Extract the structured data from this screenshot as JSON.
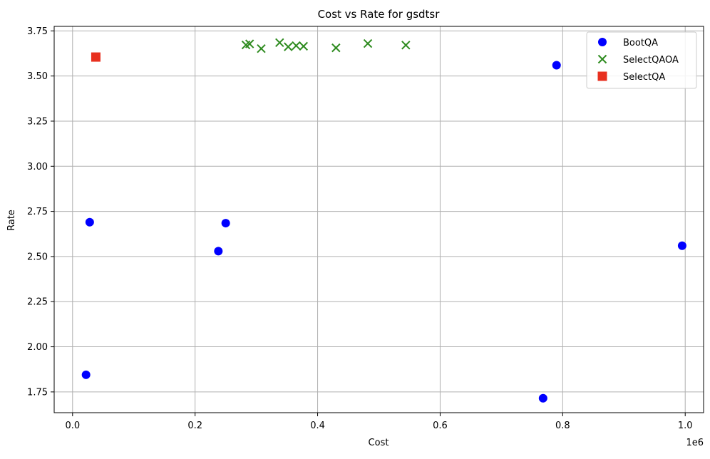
{
  "chart_data": {
    "type": "scatter",
    "title": "Cost vs Rate for gsdtsr",
    "xlabel": "Cost",
    "ylabel": "Rate",
    "x_offset_text": "1e6",
    "xlim": [
      -0.03,
      1.03
    ],
    "ylim": [
      1.635,
      3.775
    ],
    "x_ticks": [
      0.0,
      0.2,
      0.4,
      0.6,
      0.8,
      1.0
    ],
    "x_tick_labels": [
      "0.0",
      "0.2",
      "0.4",
      "0.6",
      "0.8",
      "1.0"
    ],
    "y_ticks": [
      1.75,
      2.0,
      2.25,
      2.5,
      2.75,
      3.0,
      3.25,
      3.5,
      3.75
    ],
    "y_tick_labels": [
      "1.75",
      "2.00",
      "2.25",
      "2.50",
      "2.75",
      "3.00",
      "3.25",
      "3.50",
      "3.75"
    ],
    "grid": true,
    "legend_position": "top-right",
    "series": [
      {
        "name": "BootQA",
        "marker": "circle",
        "color": "#0000ff",
        "points": [
          {
            "x": 0.022,
            "y": 1.845
          },
          {
            "x": 0.028,
            "y": 2.69
          },
          {
            "x": 0.238,
            "y": 2.53
          },
          {
            "x": 0.25,
            "y": 2.685
          },
          {
            "x": 0.768,
            "y": 1.715
          },
          {
            "x": 0.79,
            "y": 3.56
          },
          {
            "x": 0.995,
            "y": 2.56
          }
        ]
      },
      {
        "name": "SelectQAOA",
        "marker": "x",
        "color": "#2e8b1f",
        "points": [
          {
            "x": 0.283,
            "y": 3.672
          },
          {
            "x": 0.289,
            "y": 3.678
          },
          {
            "x": 0.308,
            "y": 3.652
          },
          {
            "x": 0.338,
            "y": 3.685
          },
          {
            "x": 0.352,
            "y": 3.662
          },
          {
            "x": 0.365,
            "y": 3.668
          },
          {
            "x": 0.377,
            "y": 3.665
          },
          {
            "x": 0.43,
            "y": 3.656
          },
          {
            "x": 0.482,
            "y": 3.68
          },
          {
            "x": 0.544,
            "y": 3.671
          }
        ]
      },
      {
        "name": "SelectQA",
        "marker": "square",
        "color": "#e8301f",
        "points": [
          {
            "x": 0.038,
            "y": 3.605
          }
        ]
      }
    ]
  }
}
